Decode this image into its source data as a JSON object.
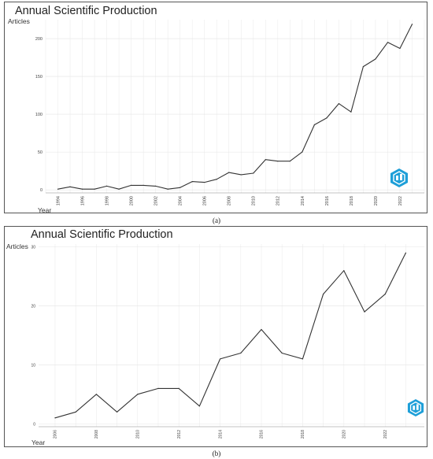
{
  "panels": [
    {
      "title": "Annual Scientific Production",
      "caption": "(a)",
      "chart_data": {
        "type": "line",
        "title": "Annual Scientific Production",
        "xlabel": "Year",
        "ylabel": "Articles",
        "x": [
          1994,
          1995,
          1996,
          1997,
          1998,
          1999,
          2000,
          2001,
          2002,
          2003,
          2004,
          2005,
          2006,
          2007,
          2008,
          2009,
          2010,
          2011,
          2012,
          2013,
          2014,
          2015,
          2016,
          2017,
          2018,
          2019,
          2020,
          2021,
          2022,
          2023
        ],
        "values": [
          1,
          4,
          1,
          1,
          5,
          1,
          6,
          6,
          5,
          1,
          3,
          11,
          10,
          14,
          23,
          20,
          22,
          40,
          38,
          38,
          50,
          86,
          95,
          114,
          103,
          163,
          173,
          195,
          187,
          219
        ],
        "xticks": [
          1994,
          1996,
          1998,
          2000,
          2002,
          2004,
          2006,
          2008,
          2010,
          2012,
          2014,
          2016,
          2018,
          2020,
          2022
        ],
        "yticks": [
          0,
          50,
          100,
          150,
          200
        ],
        "xlim": [
          1993,
          2024
        ],
        "ylim": [
          -4,
          225
        ],
        "grid": true
      }
    },
    {
      "title": "Annual Scientific Production",
      "caption": "(b)",
      "chart_data": {
        "type": "line",
        "title": "Annual Scientific Production",
        "xlabel": "Year",
        "ylabel": "Articles",
        "x": [
          2006,
          2007,
          2008,
          2009,
          2010,
          2011,
          2012,
          2013,
          2014,
          2015,
          2016,
          2017,
          2018,
          2019,
          2020,
          2021,
          2022,
          2023
        ],
        "values": [
          1,
          2,
          5,
          2,
          5,
          6,
          6,
          3,
          11,
          12,
          16,
          12,
          11,
          22,
          26,
          19,
          22,
          29
        ],
        "xticks": [
          2006,
          2008,
          2010,
          2012,
          2014,
          2016,
          2018,
          2020,
          2022
        ],
        "yticks": [
          0,
          10,
          20,
          30
        ],
        "xlim": [
          2005.2,
          2023.9
        ],
        "ylim": [
          -0.5,
          30.5
        ],
        "grid": true
      }
    }
  ],
  "logo_color": "#1e9fd8"
}
